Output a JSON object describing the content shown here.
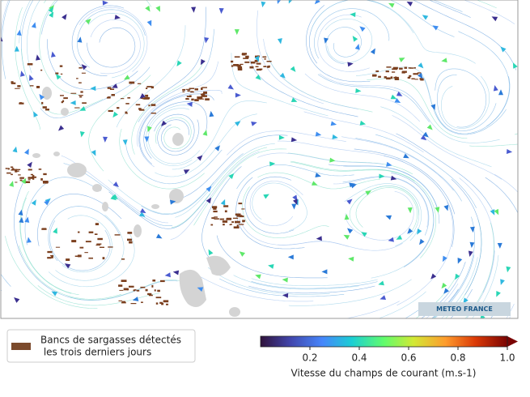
{
  "legend": {
    "line1": "Bancs de sargasses détectés",
    "line2": " les trois derniers jours"
  },
  "colorbar": {
    "label": "Vitesse du champs de courant (m.s-1)",
    "range": [
      0,
      1
    ],
    "ticks": [
      0.2,
      0.4,
      0.6,
      0.8,
      {
        "value": 1,
        "label": "1.0"
      }
    ]
  },
  "logo": "METEO FRANCE"
}
